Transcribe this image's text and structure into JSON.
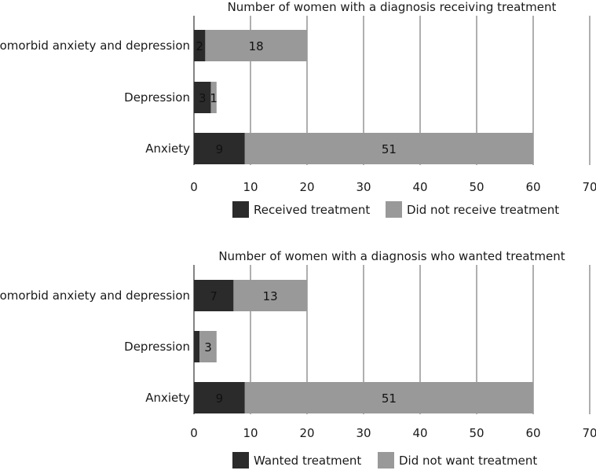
{
  "chart_data": [
    {
      "type": "bar",
      "orientation": "horizontal",
      "stacked": true,
      "title": "Number of women with a diagnosis receiving treatment",
      "categories": [
        "Comorbid anxiety and depression",
        "Depression",
        "Anxiety"
      ],
      "series": [
        {
          "name": "Received treatment",
          "values": [
            2,
            3,
            9
          ],
          "color": "#2b2b2b"
        },
        {
          "name": "Did not receive treatment",
          "values": [
            18,
            1,
            51
          ],
          "color": "#999999"
        }
      ],
      "xlim": [
        0,
        70
      ],
      "xticks": [
        0,
        10,
        20,
        30,
        40,
        50,
        60,
        70
      ],
      "grid": "vertical",
      "legend": "bottom"
    },
    {
      "type": "bar",
      "orientation": "horizontal",
      "stacked": true,
      "title": "Number of women with a diagnosis who wanted treatment",
      "categories": [
        "Comorbid anxiety and depression",
        "Depression",
        "Anxiety"
      ],
      "series": [
        {
          "name": "Wanted treatment",
          "values": [
            7,
            1,
            9
          ],
          "color": "#2b2b2b"
        },
        {
          "name": "Did not want treatment",
          "values": [
            13,
            3,
            51
          ],
          "color": "#999999"
        }
      ],
      "data_labels": [
        [
          "7",
          "",
          "9"
        ],
        [
          "13",
          "3",
          "51"
        ]
      ],
      "xlim": [
        0,
        70
      ],
      "xticks": [
        0,
        10,
        20,
        30,
        40,
        50,
        60,
        70
      ],
      "grid": "vertical",
      "legend": "bottom"
    }
  ]
}
